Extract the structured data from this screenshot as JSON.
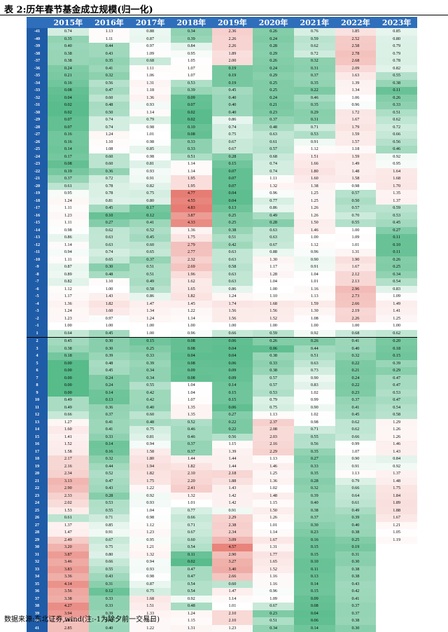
{
  "title": "表 2:历年春节基金成立规模(归一化)",
  "source": "数据来源:东北证券,wind(注:-1为除夕前一交易日)",
  "colors": {
    "header_bg": "#2F6EBA",
    "row_label_bg": "#1F5CA8",
    "low": "#57BB8A",
    "mid": "#FFFFFF",
    "high": "#E67C73"
  },
  "columns": [
    "2015年",
    "2016年",
    "2017年",
    "2018年",
    "2019年",
    "2020年",
    "2021年",
    "2022年",
    "2023年"
  ],
  "rows": [
    {
      "label": "-41",
      "values": [
        "0.74",
        "1.13",
        "0.88",
        "0.34",
        "2.36",
        "0.26",
        "0.76",
        "1.85",
        "0.85"
      ]
    },
    {
      "label": "-40",
      "values": [
        "0.35",
        "1.11",
        "0.87",
        "0.39",
        "2.26",
        "0.24",
        "0.59",
        "2.52",
        "0.80"
      ]
    },
    {
      "label": "-39",
      "values": [
        "0.40",
        "0.44",
        "0.97",
        "0.84",
        "2.26",
        "0.28",
        "0.62",
        "2.58",
        "0.79"
      ]
    },
    {
      "label": "-38",
      "values": [
        "0.38",
        "0.43",
        "1.09",
        "0.95",
        "1.89",
        "0.29",
        "0.72",
        "2.78",
        "0.79"
      ]
    },
    {
      "label": "-37",
      "values": [
        "0.38",
        "0.35",
        "0.68",
        "1.05",
        "2.00",
        "0.26",
        "0.32",
        "2.68",
        "0.78"
      ]
    },
    {
      "label": "-36",
      "values": [
        "0.24",
        "0.41",
        "1.11",
        "1.07",
        "0.19",
        "0.24",
        "0.31",
        "2.09",
        "0.82"
      ]
    },
    {
      "label": "-35",
      "values": [
        "0.21",
        "0.32",
        "1.06",
        "1.07",
        "0.19",
        "0.29",
        "0.37",
        "1.63",
        "0.55"
      ]
    },
    {
      "label": "-34",
      "values": [
        "0.16",
        "0.56",
        "1.31",
        "0.53",
        "0.19",
        "0.25",
        "0.35",
        "1.39",
        "0.38"
      ]
    },
    {
      "label": "-33",
      "values": [
        "0.08",
        "0.47",
        "1.18",
        "0.39",
        "0.45",
        "0.25",
        "0.22",
        "1.34",
        "0.11"
      ]
    },
    {
      "label": "-32",
      "values": [
        "0.04",
        "0.60",
        "1.36",
        "0.09",
        "0.40",
        "0.24",
        "0.46",
        "1.06",
        "0.26"
      ]
    },
    {
      "label": "-31",
      "values": [
        "0.02",
        "0.48",
        "0.93",
        "0.07",
        "0.40",
        "0.21",
        "0.35",
        "0.96",
        "0.33"
      ]
    },
    {
      "label": "-30",
      "values": [
        "0.02",
        "0.50",
        "1.14",
        "0.02",
        "0.40",
        "0.23",
        "0.29",
        "1.72",
        "0.51"
      ]
    },
    {
      "label": "-29",
      "values": [
        "0.07",
        "0.74",
        "0.79",
        "0.02",
        "0.86",
        "0.37",
        "0.31",
        "1.67",
        "0.62"
      ]
    },
    {
      "label": "-28",
      "values": [
        "0.07",
        "0.74",
        "0.98",
        "0.10",
        "0.74",
        "0.48",
        "0.71",
        "1.79",
        "0.72"
      ]
    },
    {
      "label": "-27",
      "values": [
        "0.16",
        "1.24",
        "1.01",
        "0.08",
        "0.75",
        "0.63",
        "0.53",
        "1.59",
        "0.66"
      ]
    },
    {
      "label": "-26",
      "values": [
        "0.16",
        "1.10",
        "0.98",
        "0.33",
        "0.67",
        "0.61",
        "0.91",
        "1.57",
        "0.56"
      ]
    },
    {
      "label": "-25",
      "values": [
        "0.14",
        "1.08",
        "0.85",
        "0.33",
        "0.67",
        "0.57",
        "1.12",
        "1.18",
        "0.46"
      ]
    },
    {
      "label": "-24",
      "values": [
        "0.17",
        "0.60",
        "0.98",
        "0.51",
        "0.28",
        "0.68",
        "1.51",
        "1.59",
        "0.92"
      ]
    },
    {
      "label": "-23",
      "values": [
        "0.08",
        "0.60",
        "0.81",
        "1.14",
        "0.15",
        "0.74",
        "1.66",
        "1.49",
        "0.95"
      ]
    },
    {
      "label": "-22",
      "values": [
        "0.19",
        "0.36",
        "0.93",
        "1.14",
        "0.07",
        "0.74",
        "1.80",
        "1.48",
        "1.64"
      ]
    },
    {
      "label": "-21",
      "values": [
        "0.37",
        "0.72",
        "0.91",
        "1.95",
        "0.07",
        "1.11",
        "1.60",
        "1.58",
        "1.68"
      ]
    },
    {
      "label": "-20",
      "values": [
        "0.61",
        "0.78",
        "0.82",
        "1.95",
        "0.07",
        "1.32",
        "1.38",
        "0.98",
        "1.70"
      ]
    },
    {
      "label": "-19",
      "values": [
        "0.95",
        "0.78",
        "0.75",
        "4.77",
        "0.04",
        "0.96",
        "1.25",
        "0.57",
        "1.35"
      ]
    },
    {
      "label": "-18",
      "values": [
        "1.24",
        "0.81",
        "0.80",
        "4.55",
        "0.04",
        "0.77",
        "1.25",
        "0.50",
        "1.37"
      ]
    },
    {
      "label": "-17",
      "values": [
        "1.11",
        "0.45",
        "0.17",
        "4.83",
        "0.13",
        "0.86",
        "1.26",
        "0.57",
        "0.59"
      ]
    },
    {
      "label": "-16",
      "values": [
        "1.23",
        "0.10",
        "0.12",
        "3.87",
        "0.25",
        "0.49",
        "1.26",
        "0.70",
        "0.53"
      ]
    },
    {
      "label": "-15",
      "values": [
        "1.11",
        "0.27",
        "0.41",
        "4.33",
        "0.25",
        "0.28",
        "1.50",
        "0.55",
        "0.45"
      ]
    },
    {
      "label": "-14",
      "values": [
        "0.98",
        "0.62",
        "0.52",
        "1.36",
        "0.38",
        "0.63",
        "1.46",
        "1.00",
        "0.27"
      ]
    },
    {
      "label": "-13",
      "values": [
        "0.86",
        "0.63",
        "0.45",
        "1.75",
        "0.51",
        "0.63",
        "1.00",
        "1.09",
        "0.11"
      ]
    },
    {
      "label": "-12",
      "values": [
        "1.14",
        "0.63",
        "0.60",
        "2.79",
        "0.42",
        "0.67",
        "1.12",
        "1.01",
        "0.10"
      ]
    },
    {
      "label": "-11",
      "values": [
        "0.94",
        "0.74",
        "0.65",
        "2.77",
        "0.63",
        "0.88",
        "0.96",
        "1.31",
        "0.11"
      ]
    },
    {
      "label": "-10",
      "values": [
        "1.11",
        "0.65",
        "0.37",
        "2.32",
        "0.63",
        "1.30",
        "0.90",
        "1.90",
        "0.26"
      ]
    },
    {
      "label": "-9",
      "values": [
        "0.87",
        "0.30",
        "0.51",
        "2.69",
        "0.58",
        "1.17",
        "0.91",
        "1.67",
        "0.25"
      ]
    },
    {
      "label": "-8",
      "values": [
        "0.89",
        "0.48",
        "0.51",
        "1.96",
        "0.63",
        "1.28",
        "1.04",
        "2.12",
        "0.34"
      ]
    },
    {
      "label": "-7",
      "values": [
        "0.82",
        "1.10",
        "0.49",
        "1.62",
        "0.63",
        "1.04",
        "1.01",
        "2.13",
        "0.54"
      ]
    },
    {
      "label": "-6",
      "values": [
        "1.12",
        "1.00",
        "0.58",
        "1.65",
        "0.86",
        "1.00",
        "1.16",
        "2.96",
        "0.83"
      ]
    },
    {
      "label": "-5",
      "values": [
        "1.17",
        "1.43",
        "0.86",
        "1.82",
        "1.24",
        "1.10",
        "1.13",
        "2.73",
        "1.09"
      ]
    },
    {
      "label": "-4",
      "values": [
        "1.36",
        "1.82",
        "1.47",
        "1.45",
        "1.74",
        "1.68",
        "1.59",
        "2.66",
        "1.49"
      ]
    },
    {
      "label": "-3",
      "values": [
        "1.24",
        "1.60",
        "1.34",
        "1.22",
        "1.56",
        "1.56",
        "1.30",
        "2.19",
        "1.41"
      ]
    },
    {
      "label": "-2",
      "values": [
        "1.23",
        "0.97",
        "1.24",
        "1.14",
        "1.56",
        "1.52",
        "1.08",
        "2.26",
        "1.25"
      ]
    },
    {
      "label": "-1",
      "values": [
        "1.00",
        "1.00",
        "1.00",
        "1.00",
        "1.00",
        "1.00",
        "1.00",
        "1.00",
        "1.00"
      ]
    },
    {
      "label": "1",
      "values": [
        "0.64",
        "0.45",
        "1.00",
        "0.96",
        "0.66",
        "0.59",
        "0.92",
        "0.68",
        "0.62"
      ]
    },
    {
      "label": "2",
      "values": [
        "0.45",
        "0.30",
        "0.15",
        "0.08",
        "0.06",
        "0.26",
        "0.26",
        "0.41",
        "0.20"
      ]
    },
    {
      "label": "3",
      "values": [
        "0.38",
        "0.30",
        "0.25",
        "0.08",
        "0.04",
        "0.06",
        "0.44",
        "0.40",
        "0.18"
      ]
    },
    {
      "label": "4",
      "values": [
        "0.18",
        "0.39",
        "0.33",
        "0.04",
        "0.04",
        "0.38",
        "0.51",
        "0.32",
        "0.15"
      ]
    },
    {
      "label": "5",
      "values": [
        "0.00",
        "0.48",
        "0.39",
        "0.08",
        "0.06",
        "0.33",
        "0.63",
        "0.22",
        "0.39"
      ]
    },
    {
      "label": "6",
      "values": [
        "0.00",
        "0.45",
        "0.34",
        "0.09",
        "0.09",
        "0.38",
        "0.73",
        "0.21",
        "0.29"
      ]
    },
    {
      "label": "7",
      "values": [
        "0.00",
        "0.24",
        "0.34",
        "0.08",
        "0.09",
        "0.57",
        "0.90",
        "0.24",
        "0.47"
      ]
    },
    {
      "label": "8",
      "values": [
        "0.00",
        "0.24",
        "0.55",
        "1.04",
        "0.14",
        "0.57",
        "0.83",
        "0.22",
        "0.47"
      ]
    },
    {
      "label": "9",
      "values": [
        "0.00",
        "0.14",
        "0.42",
        "1.04",
        "0.15",
        "0.53",
        "1.02",
        "0.23",
        "0.53"
      ]
    },
    {
      "label": "10",
      "values": [
        "0.49",
        "0.13",
        "0.42",
        "1.07",
        "0.15",
        "0.79",
        "0.99",
        "0.37",
        "0.47"
      ]
    },
    {
      "label": "11",
      "values": [
        "0.49",
        "0.36",
        "0.40",
        "1.35",
        "0.06",
        "0.75",
        "0.90",
        "0.41",
        "0.54"
      ]
    },
    {
      "label": "12",
      "values": [
        "0.66",
        "0.37",
        "0.60",
        "1.35",
        "0.27",
        "1.13",
        "1.02",
        "0.45",
        "0.58"
      ]
    },
    {
      "label": "13",
      "values": [
        "1.27",
        "0.41",
        "0.48",
        "0.52",
        "0.22",
        "2.37",
        "0.98",
        "0.62",
        "1.29"
      ]
    },
    {
      "label": "14",
      "values": [
        "1.60",
        "0.41",
        "0.75",
        "0.46",
        "0.22",
        "2.08",
        "0.71",
        "0.62",
        "1.26"
      ]
    },
    {
      "label": "15",
      "values": [
        "1.41",
        "0.33",
        "0.81",
        "0.46",
        "0.56",
        "2.03",
        "0.55",
        "0.66",
        "1.26"
      ]
    },
    {
      "label": "16",
      "values": [
        "1.52",
        "0.14",
        "0.94",
        "0.37",
        "1.15",
        "2.16",
        "0.56",
        "0.99",
        "1.46"
      ]
    },
    {
      "label": "17",
      "values": [
        "1.58",
        "0.16",
        "1.58",
        "0.37",
        "1.39",
        "2.29",
        "0.35",
        "1.07",
        "1.43"
      ]
    },
    {
      "label": "18",
      "values": [
        "2.17",
        "0.32",
        "1.80",
        "1.44",
        "1.44",
        "1.13",
        "0.27",
        "0.90",
        "0.84"
      ]
    },
    {
      "label": "19",
      "values": [
        "2.16",
        "0.44",
        "1.94",
        "1.82",
        "1.44",
        "1.46",
        "0.33",
        "0.91",
        "0.92"
      ]
    },
    {
      "label": "20",
      "values": [
        "2.34",
        "0.52",
        "1.82",
        "2.10",
        "2.18",
        "1.25",
        "0.35",
        "1.13",
        "1.37"
      ]
    },
    {
      "label": "21",
      "values": [
        "3.13",
        "0.47",
        "1.75",
        "2.20",
        "1.88",
        "1.36",
        "0.28",
        "0.79",
        "1.48"
      ]
    },
    {
      "label": "22",
      "values": [
        "2.90",
        "0.43",
        "1.22",
        "2.41",
        "1.43",
        "1.02",
        "0.32",
        "0.66",
        "1.75"
      ]
    },
    {
      "label": "23",
      "values": [
        "2.33",
        "0.28",
        "0.92",
        "1.32",
        "1.42",
        "1.48",
        "0.39",
        "0.64",
        "1.84"
      ]
    },
    {
      "label": "24",
      "values": [
        "2.02",
        "0.53",
        "0.93",
        "1.01",
        "1.42",
        "1.15",
        "0.40",
        "0.61",
        "1.89"
      ]
    },
    {
      "label": "25",
      "values": [
        "1.53",
        "0.55",
        "1.04",
        "0.77",
        "0.91",
        "1.50",
        "0.38",
        "0.49",
        "1.88"
      ]
    },
    {
      "label": "26",
      "values": [
        "0.61",
        "0.71",
        "0.98",
        "0.66",
        "2.29",
        "1.26",
        "0.37",
        "0.39",
        "1.67"
      ]
    },
    {
      "label": "27",
      "values": [
        "1.37",
        "0.85",
        "1.12",
        "0.71",
        "2.38",
        "1.01",
        "0.30",
        "0.40",
        "1.21"
      ]
    },
    {
      "label": "28",
      "values": [
        "1.47",
        "0.91",
        "1.23",
        "0.67",
        "2.34",
        "1.14",
        "0.23",
        "0.38",
        "1.05"
      ]
    },
    {
      "label": "29",
      "values": [
        "2.49",
        "0.67",
        "0.95",
        "0.60",
        "3.09",
        "1.67",
        "0.16",
        "0.25",
        "1.19"
      ]
    },
    {
      "label": "30",
      "values": [
        "3.20",
        "0.75",
        "1.21",
        "0.54",
        "4.57",
        "1.31",
        "0.15",
        "0.19",
        ""
      ]
    },
    {
      "label": "31",
      "values": [
        "3.87",
        "0.80",
        "1.32",
        "0.11",
        "2.90",
        "1.77",
        "0.15",
        "0.31",
        ""
      ]
    },
    {
      "label": "32",
      "values": [
        "3.46",
        "0.66",
        "0.94",
        "0.02",
        "3.27",
        "1.65",
        "0.10",
        "0.30",
        ""
      ]
    },
    {
      "label": "33",
      "values": [
        "3.83",
        "0.55",
        "0.93",
        "0.47",
        "3.40",
        "1.52",
        "0.11",
        "0.38",
        ""
      ]
    },
    {
      "label": "34",
      "values": [
        "3.36",
        "0.43",
        "0.98",
        "0.47",
        "2.66",
        "1.16",
        "0.13",
        "0.38",
        ""
      ]
    },
    {
      "label": "35",
      "values": [
        "4.14",
        "0.31",
        "0.87",
        "0.54",
        "0.60",
        "1.16",
        "0.14",
        "0.43",
        ""
      ]
    },
    {
      "label": "36",
      "values": [
        "3.56",
        "0.12",
        "0.75",
        "0.54",
        "1.47",
        "0.96",
        "0.15",
        "0.42",
        ""
      ]
    },
    {
      "label": "37",
      "values": [
        "3.38",
        "0.33",
        "1.68",
        "0.92",
        "1.14",
        "1.09",
        "0.09",
        "0.41",
        ""
      ]
    },
    {
      "label": "38",
      "values": [
        "4.27",
        "0.33",
        "1.51",
        "0.48",
        "1.01",
        "0.67",
        "0.08",
        "0.37",
        ""
      ]
    },
    {
      "label": "39",
      "values": [
        "3.94",
        "0.39",
        "1.33",
        "1.24",
        "2.10",
        "0.23",
        "0.04",
        "0.37",
        ""
      ]
    },
    {
      "label": "40",
      "values": [
        "2.83",
        "0.42",
        "1.22",
        "1.15",
        "2.10",
        "0.51",
        "0.06",
        "0.38",
        ""
      ]
    },
    {
      "label": "41",
      "values": [
        "2.85",
        "0.40",
        "1.22",
        "1.31",
        "1.23",
        "0.34",
        "0.14",
        "0.30",
        ""
      ]
    }
  ]
}
